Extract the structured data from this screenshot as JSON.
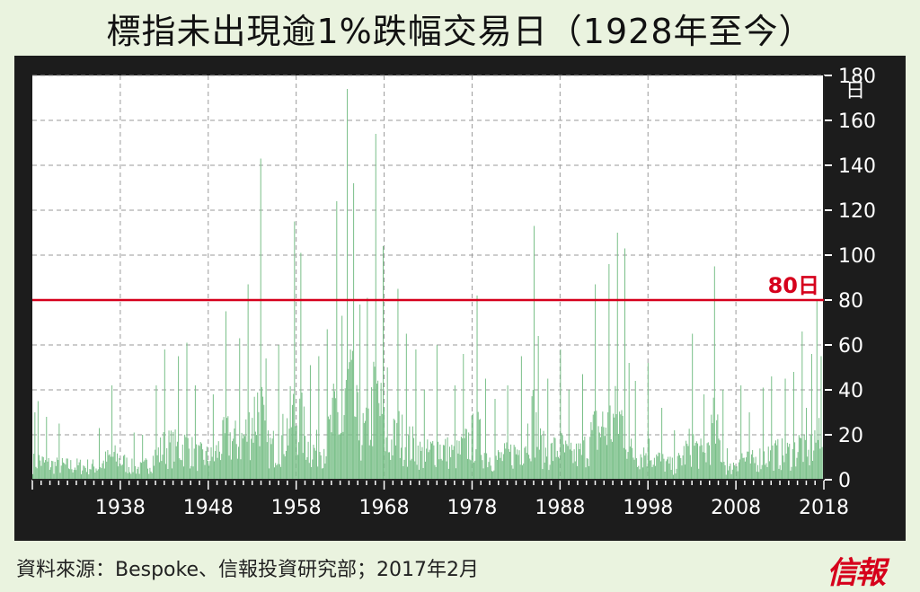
{
  "title": "標指未出現逾1%跌幅交易日（1928年至今）",
  "source": "資料來源：Bespoke、信報投資研究部；2017年2月",
  "logo": "信報",
  "colors": {
    "background": "#eaf3df",
    "plot_bg": "#ffffff",
    "frame": "#1c1c1c",
    "bars": "#79bf88",
    "threshold": "#d6001c",
    "grid": "#9a9a9a"
  },
  "chart_data": {
    "type": "bar",
    "title": "標指未出現逾1%跌幅交易日（1928年至今）",
    "ylabel": "日",
    "ylim": [
      0,
      180
    ],
    "xlim": [
      1928,
      2018
    ],
    "yticks": [
      0,
      20,
      40,
      60,
      80,
      100,
      120,
      140,
      160,
      180
    ],
    "xticks": [
      1938,
      1948,
      1958,
      1968,
      1978,
      1988,
      1998,
      2008,
      2018
    ],
    "grid": true,
    "threshold": {
      "value": 80,
      "label": "80日"
    },
    "peaks": {
      "x": [
        1928.2,
        1928.6,
        1929.5,
        1931.0,
        1935.5,
        1937.0,
        1939.5,
        1940.5,
        1942.0,
        1943.0,
        1944.5,
        1945.5,
        1946.5,
        1948.5,
        1950.0,
        1951.5,
        1952.5,
        1953.9,
        1954.5,
        1956.0,
        1957.7,
        1958.5,
        1959.5,
        1960.5,
        1961.5,
        1962.5,
        1963.2,
        1963.8,
        1964.5,
        1965.2,
        1966.0,
        1967.0,
        1967.8,
        1968.3,
        1969.5,
        1970.5,
        1971.5,
        1972.5,
        1974.0,
        1976.0,
        1977.0,
        1978.5,
        1979.5,
        1980.5,
        1982.0,
        1983.5,
        1985.0,
        1985.5,
        1986.5,
        1988.0,
        1989.0,
        1990.5,
        1992.0,
        1993.5,
        1994.5,
        1995.3,
        1995.8,
        1996.5,
        1998.0,
        1999.5,
        2001.0,
        2003.0,
        2004.3,
        2005.5,
        2006.5,
        2007.0,
        2008.5,
        2009.5,
        2011.0,
        2012.0,
        2013.5,
        2014.5,
        2015.5,
        2016.0,
        2016.5,
        2017.2,
        2017.6
      ],
      "values": [
        30,
        35,
        28,
        25,
        23,
        42,
        21,
        20,
        42,
        58,
        55,
        61,
        42,
        38,
        75,
        63,
        87,
        143,
        54,
        60,
        115,
        101,
        51,
        55,
        67,
        124,
        73,
        174,
        132,
        78,
        81,
        154,
        104,
        50,
        85,
        65,
        58,
        40,
        60,
        42,
        56,
        82,
        45,
        36,
        42,
        55,
        113,
        64,
        45,
        58,
        40,
        47,
        87,
        96,
        110,
        103,
        52,
        44,
        52,
        32,
        22,
        65,
        38,
        95,
        40,
        14,
        42,
        30,
        41,
        46,
        45,
        48,
        66,
        32,
        56,
        80,
        55
      ]
    }
  }
}
